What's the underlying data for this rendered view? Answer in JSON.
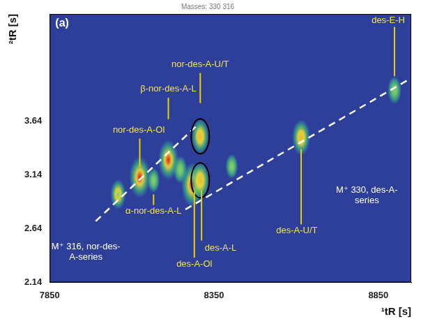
{
  "chart_data": {
    "type": "contour",
    "title": "(a)",
    "subtitle": "Masses: 330 316",
    "x_label": "¹tR [s]",
    "y_label": "²tR [s]",
    "xlim": [
      7850,
      8950
    ],
    "xticks": [
      7850,
      8350,
      8850
    ],
    "ylim": [
      2.14,
      4.64
    ],
    "yticks": [
      2.14,
      2.64,
      3.14,
      3.64
    ],
    "grid": false,
    "peaks": [
      {
        "x": 8058,
        "y": 2.96,
        "intensity": 0.5
      },
      {
        "x": 8124,
        "y": 3.12,
        "intensity": 0.9
      },
      {
        "x": 8166,
        "y": 3.09,
        "intensity": 0.3
      },
      {
        "x": 8211,
        "y": 3.28,
        "intensity": 0.85
      },
      {
        "x": 8247,
        "y": 3.19,
        "intensity": 0.4
      },
      {
        "x": 8284,
        "y": 3.05,
        "intensity": 1.0
      },
      {
        "x": 8308,
        "y": 3.09,
        "intensity": 0.8,
        "marker": "ring"
      },
      {
        "x": 8308,
        "y": 3.5,
        "intensity": 0.7,
        "marker": "ring"
      },
      {
        "x": 8404,
        "y": 3.22,
        "intensity": 0.3
      },
      {
        "x": 8615,
        "y": 3.49,
        "intensity": 0.7
      },
      {
        "x": 8899,
        "y": 3.93,
        "intensity": 0.4
      }
    ],
    "series": [
      {
        "type": "line",
        "line_style": "dashed",
        "color": "#ffffff",
        "x": [
          7990,
          8301
        ],
        "values": [
          2.71,
          3.61
        ]
      },
      {
        "type": "line",
        "line_style": "dashed",
        "color": "#ffffff",
        "x": [
          8263,
          8937
        ],
        "values": [
          2.82,
          4.02
        ]
      }
    ],
    "annotations": [
      {
        "text": "nor-des-A-Ol",
        "x": 8121,
        "y": 3.56,
        "color": "#f2e34c",
        "line": {
          "x": 8124,
          "y": [
            3.48,
            3.22
          ]
        }
      },
      {
        "text": "β-nor-des-A-L",
        "x": 8211,
        "y": 3.94,
        "color": "#f2e34c",
        "line": {
          "x": 8211,
          "y": [
            3.86,
            3.66
          ]
        }
      },
      {
        "text": "nor-des-A-U/T",
        "x": 8308,
        "y": 4.17,
        "color": "#f2e34c",
        "line": {
          "x": 8308,
          "y": [
            4.09,
            3.81
          ]
        }
      },
      {
        "text": "des-E-H",
        "x": 8880,
        "y": 4.58,
        "color": "#f2e34c",
        "line": {
          "x": 8899,
          "y": [
            4.52,
            4.06
          ]
        }
      },
      {
        "text": "α-nor-des-A-L",
        "x": 8166,
        "y": 2.8,
        "color": "#f2e34c",
        "line": {
          "x": 8166,
          "y": [
            2.96,
            2.86
          ]
        }
      },
      {
        "text": "des-A-Ol",
        "x": 8290,
        "y": 2.31,
        "color": "#f2e34c",
        "line": {
          "x": 8290,
          "y": [
            2.98,
            2.37
          ]
        }
      },
      {
        "text": "des-A-L",
        "x": 8370,
        "y": 2.46,
        "color": "#f2e34c",
        "line": {
          "x": 8312,
          "y": [
            3.0,
            2.53
          ]
        }
      },
      {
        "text": "des-A-U/T",
        "x": 8602,
        "y": 2.62,
        "color": "#f2e34c",
        "line": {
          "x": 8615,
          "y": [
            3.38,
            2.68
          ]
        }
      },
      {
        "text": "M⁺ 330, des-A-series",
        "x": 8815,
        "y": 2.95,
        "color": "#ffffff"
      },
      {
        "text": "M⁺ 316, nor-des-A-series",
        "x": 7960,
        "y": 2.42,
        "color": "#ffffff"
      }
    ]
  }
}
